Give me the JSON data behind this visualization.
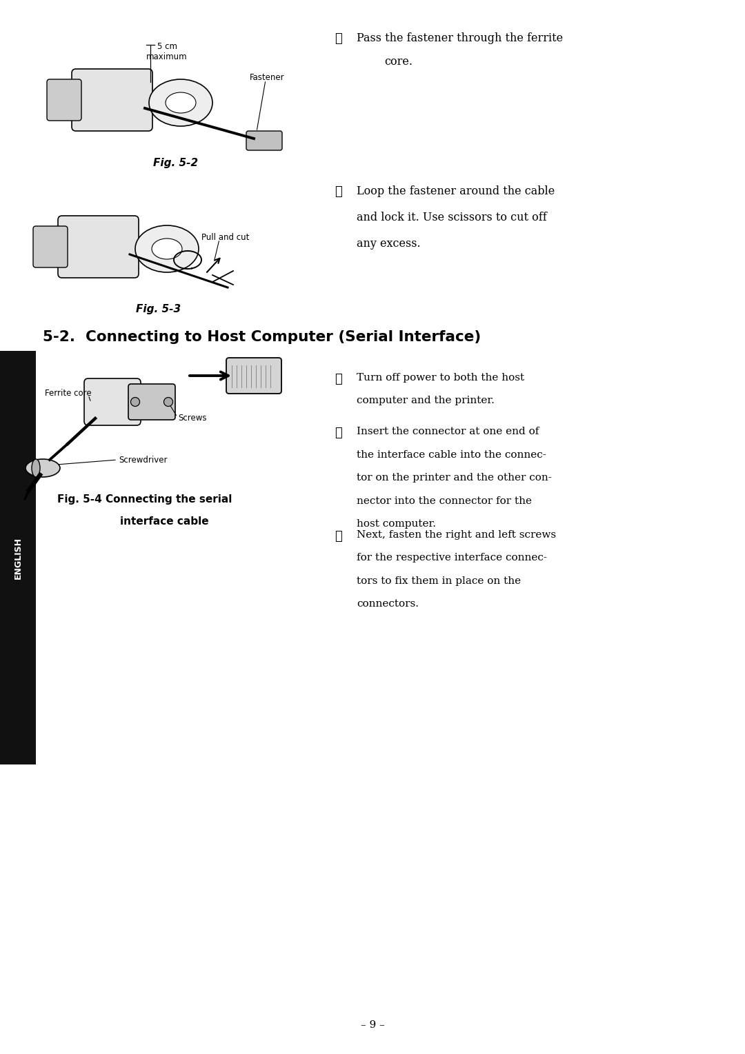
{
  "bg_color": "#ffffff",
  "page_width": 10.8,
  "page_height": 15.29,
  "sidebar_color": "#111111",
  "sidebar_text": "ENGLISH",
  "sidebar_text_color": "#ffffff",
  "fig2_5cm_label": "5 cm\nmaximum",
  "fig2_fastener_label": "Fastener",
  "fig2_caption": "Fig. 5-2",
  "step2_num": "②",
  "step2_line1": "Pass the fastener through the ferrite",
  "step2_line2": "core.",
  "step3_num": "③",
  "step3_line1": "Loop the fastener around the cable",
  "step3_line2": "and lock it. Use scissors to cut off",
  "step3_line3": "any excess.",
  "fig3_pull_label": "Pull and cut",
  "fig3_caption": "Fig. 5-3",
  "section_title": "5-2.  Connecting to Host Computer (Serial Interface)",
  "fig4_ferrite_label": "Ferrite core",
  "fig4_screws_label": "Screws",
  "fig4_screwdriver_label": "Screwdriver",
  "fig4_caption_line1": "Fig. 5-4 Connecting the serial",
  "fig4_caption_line2": "interface cable",
  "s2_step1_num": "①",
  "s2_step1_line1": "Turn off power to both the host",
  "s2_step1_line2": "computer and the printer.",
  "s2_step2_num": "②",
  "s2_step2_line1": "Insert the connector at one end of",
  "s2_step2_line2": "the interface cable into the connec-",
  "s2_step2_line3": "tor on the printer and the other con-",
  "s2_step2_line4": "nector into the connector for the",
  "s2_step2_line5": "host computer.",
  "s2_step3_num": "③",
  "s2_step3_line1": "Next, fasten the right and left screws",
  "s2_step3_line2": "for the respective interface connec-",
  "s2_step3_line3": "tors to fix them in place on the",
  "s2_step3_line4": "connectors.",
  "page_num": "– 9 –"
}
